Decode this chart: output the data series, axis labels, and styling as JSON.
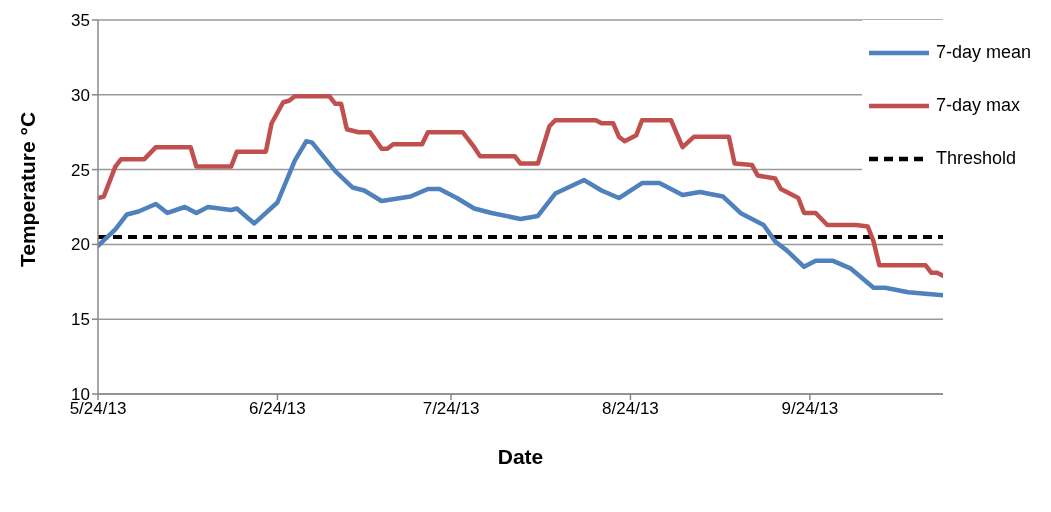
{
  "chart_data": {
    "type": "line",
    "xlabel": "Date",
    "ylabel": "Temperature °C",
    "xlim": [
      "2013-05-24",
      "2013-10-17"
    ],
    "xticks": [
      {
        "value": "2013-05-24",
        "label": "5/24/13"
      },
      {
        "value": "2013-06-24",
        "label": "6/24/13"
      },
      {
        "value": "2013-07-24",
        "label": "7/24/13"
      },
      {
        "value": "2013-08-24",
        "label": "8/24/13"
      },
      {
        "value": "2013-09-24",
        "label": "9/24/13"
      }
    ],
    "ylim": [
      10,
      35
    ],
    "yticks": [
      10,
      15,
      20,
      25,
      30,
      35
    ],
    "grid": "y",
    "legend": "top right",
    "series": [
      {
        "name": "7-day mean",
        "color": "#4f81bd",
        "x": [
          "2013-05-24",
          "2013-05-27",
          "2013-05-29",
          "2013-05-31",
          "2013-06-03",
          "2013-06-05",
          "2013-06-08",
          "2013-06-10",
          "2013-06-12",
          "2013-06-16",
          "2013-06-17",
          "2013-06-20",
          "2013-06-24",
          "2013-06-27",
          "2013-06-29",
          "2013-06-30",
          "2013-07-04",
          "2013-07-07",
          "2013-07-09",
          "2013-07-12",
          "2013-07-17",
          "2013-07-20",
          "2013-07-22",
          "2013-07-25",
          "2013-07-28",
          "2013-07-31",
          "2013-08-05",
          "2013-08-08",
          "2013-08-11",
          "2013-08-16",
          "2013-08-19",
          "2013-08-22",
          "2013-08-26",
          "2013-08-29",
          "2013-09-02",
          "2013-09-05",
          "2013-09-09",
          "2013-09-12",
          "2013-09-16",
          "2013-09-18",
          "2013-09-20",
          "2013-09-23",
          "2013-09-25",
          "2013-09-28",
          "2013-10-01",
          "2013-10-05",
          "2013-10-07",
          "2013-10-11",
          "2013-10-17"
        ],
        "values": [
          19.9,
          21.0,
          22.0,
          22.2,
          22.7,
          22.1,
          22.5,
          22.1,
          22.5,
          22.3,
          22.4,
          21.4,
          22.8,
          25.6,
          26.9,
          26.8,
          24.9,
          23.8,
          23.6,
          22.9,
          23.2,
          23.7,
          23.7,
          23.1,
          22.4,
          22.1,
          21.7,
          21.9,
          23.4,
          24.3,
          23.6,
          23.1,
          24.1,
          24.1,
          23.3,
          23.5,
          23.2,
          22.1,
          21.3,
          20.2,
          19.6,
          18.5,
          18.9,
          18.9,
          18.4,
          17.1,
          17.1,
          16.8,
          16.6
        ]
      },
      {
        "name": "7-day max",
        "color": "#c0504d",
        "x": [
          "2013-05-24",
          "2013-05-25",
          "2013-05-27",
          "2013-05-28",
          "2013-06-01",
          "2013-06-03",
          "2013-06-09",
          "2013-06-10",
          "2013-06-16",
          "2013-06-17",
          "2013-06-22",
          "2013-06-23",
          "2013-06-25",
          "2013-06-26",
          "2013-06-27",
          "2013-07-03",
          "2013-07-04",
          "2013-07-05",
          "2013-07-06",
          "2013-07-08",
          "2013-07-10",
          "2013-07-12",
          "2013-07-13",
          "2013-07-14",
          "2013-07-19",
          "2013-07-20",
          "2013-07-26",
          "2013-07-28",
          "2013-07-29",
          "2013-08-04",
          "2013-08-05",
          "2013-08-08",
          "2013-08-10",
          "2013-08-11",
          "2013-08-18",
          "2013-08-19",
          "2013-08-21",
          "2013-08-22",
          "2013-08-23",
          "2013-08-25",
          "2013-08-26",
          "2013-08-31",
          "2013-09-02",
          "2013-09-04",
          "2013-09-10",
          "2013-09-11",
          "2013-09-14",
          "2013-09-15",
          "2013-09-18",
          "2013-09-19",
          "2013-09-20",
          "2013-09-22",
          "2013-09-23",
          "2013-09-25",
          "2013-09-27",
          "2013-10-02",
          "2013-10-04",
          "2013-10-05",
          "2013-10-06",
          "2013-10-14",
          "2013-10-15",
          "2013-10-16",
          "2013-10-17"
        ],
        "values": [
          23.1,
          23.2,
          25.2,
          25.7,
          25.7,
          26.5,
          26.5,
          25.2,
          25.2,
          26.2,
          26.2,
          28.1,
          29.5,
          29.6,
          29.9,
          29.9,
          29.4,
          29.4,
          27.7,
          27.5,
          27.5,
          26.4,
          26.4,
          26.7,
          26.7,
          27.5,
          27.5,
          26.5,
          25.9,
          25.9,
          25.4,
          25.4,
          27.9,
          28.3,
          28.3,
          28.1,
          28.1,
          27.2,
          26.9,
          27.3,
          28.3,
          28.3,
          26.5,
          27.2,
          27.2,
          25.4,
          25.3,
          24.6,
          24.4,
          23.7,
          23.5,
          23.1,
          22.1,
          22.1,
          21.3,
          21.3,
          21.2,
          20.2,
          18.6,
          18.6,
          18.1,
          18.1,
          17.9
        ]
      }
    ],
    "ref_lines": [
      {
        "axis": "y",
        "value": 20.5,
        "label": "Threshold",
        "color": "#000000",
        "line_style": "dashed"
      }
    ]
  }
}
